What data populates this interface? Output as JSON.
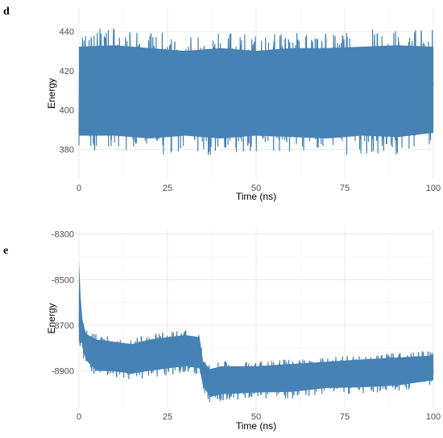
{
  "chart_data": [
    {
      "panel": "d",
      "type": "line",
      "title": "",
      "xlabel": "Time (ns)",
      "ylabel": "Energy",
      "xlim": [
        0,
        100
      ],
      "ylim": [
        365,
        452
      ],
      "xticks": [
        0,
        25,
        50,
        75,
        100
      ],
      "yticks": [
        380,
        400,
        420,
        440
      ],
      "grid": true,
      "color": "#4682B4",
      "series": [
        {
          "x": [
            0,
            10,
            20,
            30,
            40,
            50,
            60,
            70,
            80,
            90,
            100
          ],
          "mean": [
            410,
            410,
            410,
            410,
            410,
            410,
            410,
            410,
            410,
            410,
            410
          ],
          "low": [
            378,
            378,
            376,
            378,
            376,
            378,
            377,
            376,
            378,
            377,
            380
          ],
          "high": [
            441,
            442,
            440,
            438,
            440,
            438,
            440,
            440,
            441,
            442,
            441
          ]
        }
      ]
    },
    {
      "panel": "e",
      "type": "line",
      "title": "",
      "xlabel": "Time (ns)",
      "ylabel": "Energy",
      "xlim": [
        0,
        100
      ],
      "ylim": [
        -9060,
        -8280
      ],
      "xticks": [
        0,
        25,
        50,
        75,
        100
      ],
      "yticks": [
        -8300,
        -8500,
        -8700,
        -8900
      ],
      "grid": true,
      "color": "#4682B4",
      "series": [
        {
          "x": [
            0,
            0.5,
            1,
            2,
            3,
            5,
            10,
            15,
            20,
            25,
            30,
            34,
            35,
            37,
            40,
            50,
            60,
            70,
            80,
            90,
            100
          ],
          "mean": [
            -8700,
            -8660,
            -8720,
            -8780,
            -8790,
            -8820,
            -8830,
            -8840,
            -8820,
            -8810,
            -8800,
            -8810,
            -8900,
            -8950,
            -8930,
            -8930,
            -8920,
            -8910,
            -8900,
            -8895,
            -8890
          ],
          "low": [
            -8820,
            -8780,
            -8830,
            -8880,
            -8900,
            -8930,
            -8930,
            -8940,
            -8930,
            -8920,
            -8910,
            -8920,
            -8990,
            -9040,
            -9030,
            -9020,
            -9020,
            -9000,
            -9000,
            -8990,
            -8960
          ],
          "high": [
            -8310,
            -8550,
            -8660,
            -8720,
            -8730,
            -8740,
            -8750,
            -8760,
            -8740,
            -8730,
            -8720,
            -8730,
            -8840,
            -8870,
            -8860,
            -8860,
            -8850,
            -8840,
            -8830,
            -8820,
            -8810
          ]
        }
      ]
    }
  ]
}
